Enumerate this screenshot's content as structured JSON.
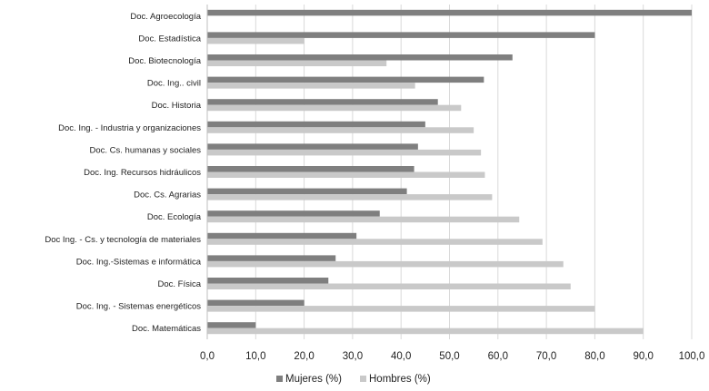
{
  "chart_data": {
    "type": "bar",
    "orientation": "horizontal",
    "categories": [
      "Doc. Agroecología",
      "Doc.  Estadística",
      "Doc. Biotecnología",
      "Doc.  Ing.. civil",
      "Doc. Historia",
      "Doc. Ing. - Industria y organizaciones",
      "Doc. Cs. humanas y sociales",
      "Doc. Ing. Recursos hidráulicos",
      "Doc.  Cs. Agrarias",
      "Doc. Ecología",
      "Doc Ing. - Cs. y tecnología de materiales",
      "Doc. Ing.-Sistemas e informática",
      "Doc. Física",
      "Doc. Ing. - Sistemas energéticos",
      "Doc.  Matemáticas"
    ],
    "series": [
      {
        "name": "Mujeres (%)",
        "color": "#7f7f7f",
        "values": [
          100,
          80,
          63,
          57.1,
          47.6,
          45,
          43.5,
          42.7,
          41.2,
          35.6,
          30.8,
          26.5,
          25,
          20,
          10
        ]
      },
      {
        "name": "Hombres (%)",
        "color": "#c9c9c9",
        "values": [
          0,
          20,
          37,
          42.9,
          52.4,
          55,
          56.5,
          57.3,
          58.8,
          64.4,
          69.2,
          73.5,
          75,
          80,
          90
        ]
      }
    ],
    "xlim": [
      0,
      100
    ],
    "ticks": [
      "0,0",
      "10,0",
      "20,0",
      "30,0",
      "40,0",
      "50,0",
      "60,0",
      "70,0",
      "80,0",
      "90,0",
      "100,0"
    ],
    "grid": true,
    "legend_position": "bottom"
  }
}
